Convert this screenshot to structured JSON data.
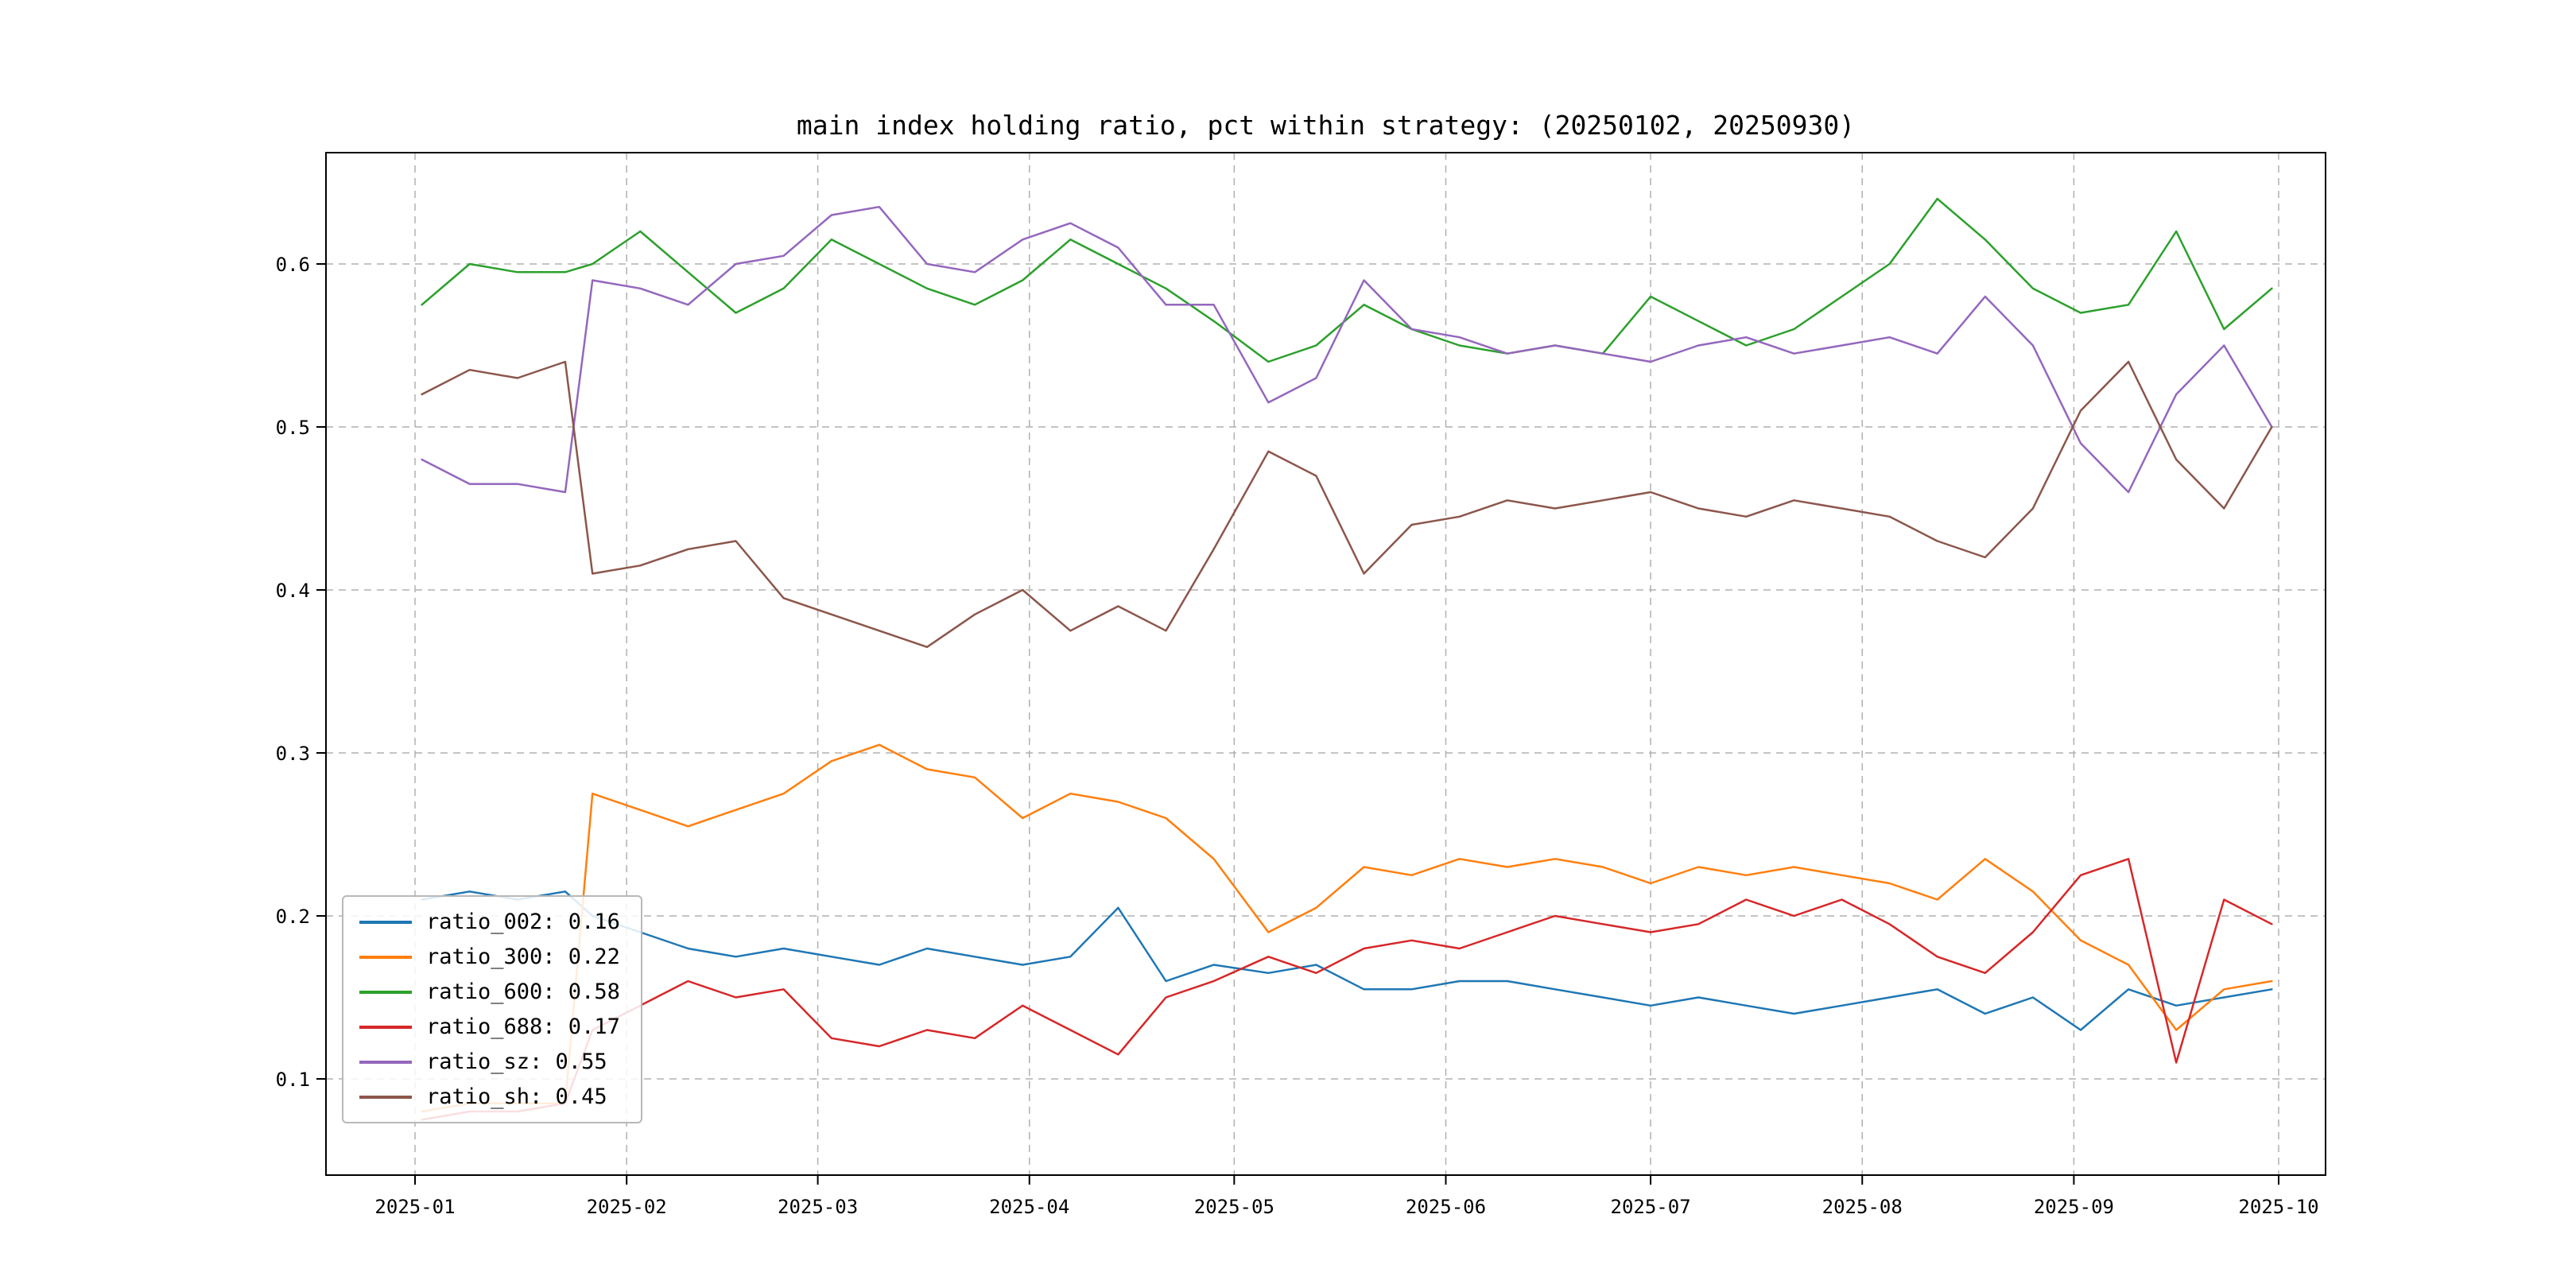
{
  "page": {
    "background": "#ffffff"
  },
  "chart_data": {
    "type": "line",
    "title": "main index holding ratio, pct within strategy: (20250102, 20250930)",
    "xlabel": "",
    "ylabel": "",
    "grid": true,
    "grid_style": "dashed",
    "legend_position": "lower left",
    "ylim": [
      0.041,
      0.668
    ],
    "y_ticks": [
      0.1,
      0.2,
      0.3,
      0.4,
      0.5,
      0.6
    ],
    "y_tick_labels": [
      "0.1",
      "0.2",
      "0.3",
      "0.4",
      "0.5",
      "0.6"
    ],
    "x_tick_labels": [
      "2025-01",
      "2025-02",
      "2025-03",
      "2025-04",
      "2025-05",
      "2025-06",
      "2025-07",
      "2025-08",
      "2025-09",
      "2025-10"
    ],
    "x": [
      "2025-01-02",
      "2025-01-09",
      "2025-01-16",
      "2025-01-23",
      "2025-01-27",
      "2025-02-03",
      "2025-02-10",
      "2025-02-17",
      "2025-02-24",
      "2025-03-03",
      "2025-03-10",
      "2025-03-17",
      "2025-03-24",
      "2025-03-31",
      "2025-04-07",
      "2025-04-14",
      "2025-04-21",
      "2025-04-28",
      "2025-05-06",
      "2025-05-13",
      "2025-05-20",
      "2025-05-27",
      "2025-06-03",
      "2025-06-10",
      "2025-06-17",
      "2025-06-24",
      "2025-07-01",
      "2025-07-08",
      "2025-07-15",
      "2025-07-22",
      "2025-07-29",
      "2025-08-05",
      "2025-08-12",
      "2025-08-19",
      "2025-08-26",
      "2025-09-02",
      "2025-09-09",
      "2025-09-16",
      "2025-09-23",
      "2025-09-30"
    ],
    "series": [
      {
        "name": "ratio_002",
        "legend_label": "ratio_002: 0.16",
        "color": "#1f77b4",
        "values": [
          0.21,
          0.215,
          0.21,
          0.215,
          0.2,
          0.19,
          0.18,
          0.175,
          0.18,
          0.175,
          0.17,
          0.18,
          0.175,
          0.17,
          0.175,
          0.205,
          0.16,
          0.17,
          0.165,
          0.17,
          0.155,
          0.155,
          0.16,
          0.16,
          0.155,
          0.15,
          0.145,
          0.15,
          0.145,
          0.14,
          0.145,
          0.15,
          0.155,
          0.14,
          0.15,
          0.13,
          0.155,
          0.145,
          0.15,
          0.155
        ]
      },
      {
        "name": "ratio_300",
        "legend_label": "ratio_300: 0.22",
        "color": "#ff7f0e",
        "values": [
          0.08,
          0.085,
          0.085,
          0.085,
          0.275,
          0.265,
          0.255,
          0.265,
          0.275,
          0.295,
          0.305,
          0.29,
          0.285,
          0.26,
          0.275,
          0.27,
          0.26,
          0.235,
          0.19,
          0.205,
          0.23,
          0.225,
          0.235,
          0.23,
          0.235,
          0.23,
          0.22,
          0.23,
          0.225,
          0.23,
          0.225,
          0.22,
          0.21,
          0.235,
          0.215,
          0.185,
          0.17,
          0.13,
          0.155,
          0.16
        ]
      },
      {
        "name": "ratio_600",
        "legend_label": "ratio_600: 0.58",
        "color": "#2ca02c",
        "values": [
          0.575,
          0.6,
          0.595,
          0.595,
          0.6,
          0.62,
          0.595,
          0.57,
          0.585,
          0.615,
          0.6,
          0.585,
          0.575,
          0.59,
          0.615,
          0.6,
          0.585,
          0.565,
          0.54,
          0.55,
          0.575,
          0.56,
          0.55,
          0.545,
          0.55,
          0.545,
          0.58,
          0.565,
          0.55,
          0.56,
          0.58,
          0.6,
          0.64,
          0.615,
          0.585,
          0.57,
          0.575,
          0.62,
          0.56,
          0.585
        ]
      },
      {
        "name": "ratio_688",
        "legend_label": "ratio_688: 0.17",
        "color": "#d62728",
        "values": [
          0.075,
          0.08,
          0.08,
          0.085,
          0.13,
          0.145,
          0.16,
          0.15,
          0.155,
          0.125,
          0.12,
          0.13,
          0.125,
          0.145,
          0.13,
          0.115,
          0.15,
          0.16,
          0.175,
          0.165,
          0.18,
          0.185,
          0.18,
          0.19,
          0.2,
          0.195,
          0.19,
          0.195,
          0.21,
          0.2,
          0.21,
          0.195,
          0.175,
          0.165,
          0.19,
          0.225,
          0.235,
          0.11,
          0.21,
          0.195
        ]
      },
      {
        "name": "ratio_sz",
        "legend_label": "ratio_sz: 0.55",
        "color": "#9467bd",
        "values": [
          0.48,
          0.465,
          0.465,
          0.46,
          0.59,
          0.585,
          0.575,
          0.6,
          0.605,
          0.63,
          0.635,
          0.6,
          0.595,
          0.615,
          0.625,
          0.61,
          0.575,
          0.575,
          0.515,
          0.53,
          0.59,
          0.56,
          0.555,
          0.545,
          0.55,
          0.545,
          0.54,
          0.55,
          0.555,
          0.545,
          0.55,
          0.555,
          0.545,
          0.58,
          0.55,
          0.49,
          0.46,
          0.52,
          0.55,
          0.5
        ]
      },
      {
        "name": "ratio_sh",
        "legend_label": "ratio_sh: 0.45",
        "color": "#8c564b",
        "values": [
          0.52,
          0.535,
          0.53,
          0.54,
          0.41,
          0.415,
          0.425,
          0.43,
          0.395,
          0.385,
          0.375,
          0.365,
          0.385,
          0.4,
          0.375,
          0.39,
          0.375,
          0.425,
          0.485,
          0.47,
          0.41,
          0.44,
          0.445,
          0.455,
          0.45,
          0.455,
          0.46,
          0.45,
          0.445,
          0.455,
          0.45,
          0.445,
          0.43,
          0.42,
          0.45,
          0.51,
          0.54,
          0.48,
          0.45,
          0.5
        ]
      }
    ]
  }
}
